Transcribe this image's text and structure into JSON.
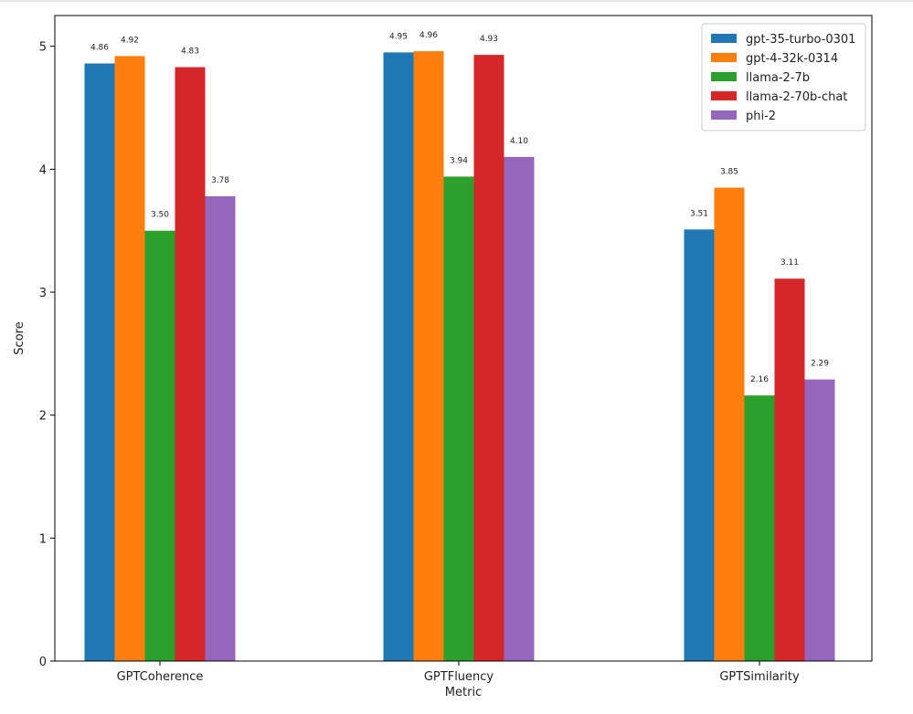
{
  "chart_data": {
    "type": "bar",
    "title": "",
    "xlabel": "Metric",
    "ylabel": "Score",
    "ylim": [
      0,
      5.25
    ],
    "yticks": [
      0,
      1,
      2,
      3,
      4,
      5
    ],
    "categories": [
      "GPTCoherence",
      "GPTFluency",
      "GPTSimilarity"
    ],
    "series": [
      {
        "name": "gpt-35-turbo-0301",
        "color": "#1f77b4",
        "values": [
          4.86,
          4.95,
          3.51
        ],
        "labels": [
          "4.86",
          "4.95",
          "3.51"
        ]
      },
      {
        "name": "gpt-4-32k-0314",
        "color": "#ff7f0e",
        "values": [
          4.92,
          4.96,
          3.85
        ],
        "labels": [
          "4.92",
          "4.96",
          "3.85"
        ]
      },
      {
        "name": "llama-2-7b",
        "color": "#2ca02c",
        "values": [
          3.5,
          3.94,
          2.16
        ],
        "labels": [
          "3.50",
          "3.94",
          "2.16"
        ]
      },
      {
        "name": "llama-2-70b-chat",
        "color": "#d62728",
        "values": [
          4.83,
          4.93,
          3.11
        ],
        "labels": [
          "4.83",
          "4.93",
          "3.11"
        ]
      },
      {
        "name": "phi-2",
        "color": "#9467bd",
        "values": [
          3.78,
          4.1,
          2.29
        ],
        "labels": [
          "3.78",
          "4.10",
          "2.29"
        ]
      }
    ],
    "legend_position": "top-right",
    "grid": false
  }
}
